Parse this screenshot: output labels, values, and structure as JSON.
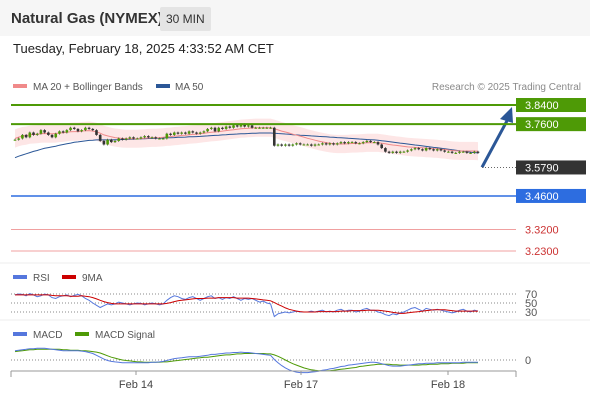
{
  "header": {
    "title": "Natural Gas (NYMEX)",
    "timeframe": "30 MIN",
    "datetime": "Tuesday, February 18, 2025 4:33:52 AM CET"
  },
  "colors": {
    "ma20": "#f08a8a",
    "ma50": "#2b5797",
    "resistance": "#4e9a06",
    "support": "#2d6de0",
    "lower_support": "#e06c6c",
    "current": "#333333",
    "rsi": "#5577dd",
    "rsi_ma": "#cc0000",
    "macd": "#5577dd",
    "macd_signal": "#4e9a06",
    "bollinger_fill": "#fbd5d5",
    "arrow": "#2b5797"
  },
  "chart_data": [
    {
      "type": "candlestick",
      "legend": [
        {
          "name": "MA 20 + Bollinger Bands",
          "color": "#f08a8a"
        },
        {
          "name": "MA 50",
          "color": "#2b5797"
        }
      ],
      "credit": "Research © 2025 Trading Central",
      "x_ticks": [
        "Feb 14",
        "Feb 17",
        "Feb 18"
      ],
      "ylim": [
        3.21,
        3.86
      ],
      "levels": [
        {
          "label": "3.8400",
          "value": 3.84,
          "style": "resistance"
        },
        {
          "label": "3.7600",
          "value": 3.76,
          "style": "resistance"
        },
        {
          "label": "3.5790",
          "value": 3.579,
          "style": "current"
        },
        {
          "label": "3.4600",
          "value": 3.46,
          "style": "support"
        },
        {
          "label": "3.3200",
          "value": 3.32,
          "style": "lower_support"
        },
        {
          "label": "3.2300",
          "value": 3.23,
          "style": "lower_support"
        }
      ],
      "close": [
        3.695,
        3.7,
        3.715,
        3.705,
        3.725,
        3.715,
        3.72,
        3.735,
        3.725,
        3.715,
        3.705,
        3.72,
        3.73,
        3.725,
        3.735,
        3.745,
        3.74,
        3.73,
        3.735,
        3.745,
        3.74,
        3.735,
        3.715,
        3.69,
        3.675,
        3.695,
        3.685,
        3.69,
        3.7,
        3.695,
        3.7,
        3.705,
        3.7,
        3.7,
        3.705,
        3.71,
        3.705,
        3.705,
        3.7,
        3.7,
        3.7,
        3.72,
        3.715,
        3.725,
        3.72,
        3.725,
        3.72,
        3.73,
        3.725,
        3.72,
        3.725,
        3.73,
        3.74,
        3.745,
        3.73,
        3.745,
        3.74,
        3.75,
        3.745,
        3.755,
        3.75,
        3.76,
        3.75,
        3.755,
        3.745,
        3.745,
        3.745,
        3.745,
        3.745,
        3.745,
        3.67,
        3.675,
        3.67,
        3.675,
        3.67,
        3.675,
        3.68,
        3.675,
        3.675,
        3.675,
        3.67,
        3.675,
        3.675,
        3.68,
        3.675,
        3.68,
        3.675,
        3.68,
        3.685,
        3.68,
        3.685,
        3.685,
        3.68,
        3.68,
        3.685,
        3.69,
        3.685,
        3.685,
        3.675,
        3.66,
        3.645,
        3.64,
        3.645,
        3.64,
        3.645,
        3.645,
        3.65,
        3.655,
        3.66,
        3.655,
        3.65,
        3.66,
        3.655,
        3.65,
        3.655,
        3.65,
        3.645,
        3.645,
        3.64,
        3.64,
        3.645,
        3.645,
        3.64,
        3.64,
        3.645,
        3.64
      ],
      "ma20": [
        3.7,
        3.706,
        3.71,
        3.712,
        3.716,
        3.717,
        3.718,
        3.72,
        3.721,
        3.72,
        3.72,
        3.721,
        3.723,
        3.724,
        3.726,
        3.728,
        3.729,
        3.729,
        3.731,
        3.732,
        3.733,
        3.731,
        3.728,
        3.722,
        3.715,
        3.711,
        3.707,
        3.704,
        3.702,
        3.7,
        3.699,
        3.699,
        3.699,
        3.699,
        3.7,
        3.701,
        3.702,
        3.703,
        3.703,
        3.704,
        3.705,
        3.707,
        3.708,
        3.71,
        3.711,
        3.713,
        3.714,
        3.716,
        3.717,
        3.718,
        3.72,
        3.722,
        3.724,
        3.726,
        3.727,
        3.729,
        3.731,
        3.733,
        3.735,
        3.737,
        3.739,
        3.741,
        3.742,
        3.743,
        3.744,
        3.745,
        3.745,
        3.745,
        3.745,
        3.745,
        3.741,
        3.736,
        3.731,
        3.727,
        3.723,
        3.718,
        3.714,
        3.71,
        3.706,
        3.701,
        3.697,
        3.693,
        3.689,
        3.686,
        3.683,
        3.68,
        3.678,
        3.677,
        3.677,
        3.677,
        3.678,
        3.679,
        3.679,
        3.68,
        3.681,
        3.682,
        3.682,
        3.682,
        3.682,
        3.68,
        3.678,
        3.675,
        3.673,
        3.671,
        3.669,
        3.667,
        3.665,
        3.664,
        3.663,
        3.662,
        3.661,
        3.66,
        3.659,
        3.658,
        3.657,
        3.655,
        3.654,
        3.652,
        3.65,
        3.649,
        3.648,
        3.648,
        3.648,
        3.648,
        3.648,
        3.647
      ],
      "ma50": [
        3.62,
        3.626,
        3.631,
        3.636,
        3.641,
        3.646,
        3.65,
        3.655,
        3.659,
        3.662,
        3.665,
        3.668,
        3.672,
        3.675,
        3.678,
        3.681,
        3.684,
        3.686,
        3.688,
        3.69,
        3.692,
        3.693,
        3.694,
        3.694,
        3.694,
        3.694,
        3.694,
        3.695,
        3.695,
        3.696,
        3.696,
        3.697,
        3.697,
        3.698,
        3.699,
        3.699,
        3.7,
        3.7,
        3.701,
        3.701,
        3.702,
        3.703,
        3.703,
        3.704,
        3.705,
        3.705,
        3.706,
        3.707,
        3.707,
        3.708,
        3.709,
        3.71,
        3.711,
        3.712,
        3.713,
        3.714,
        3.715,
        3.716,
        3.717,
        3.718,
        3.719,
        3.72,
        3.72,
        3.721,
        3.722,
        3.722,
        3.723,
        3.723,
        3.723,
        3.723,
        3.722,
        3.721,
        3.72,
        3.719,
        3.718,
        3.716,
        3.715,
        3.714,
        3.713,
        3.712,
        3.711,
        3.71,
        3.709,
        3.708,
        3.707,
        3.706,
        3.705,
        3.704,
        3.703,
        3.702,
        3.701,
        3.7,
        3.699,
        3.698,
        3.697,
        3.696,
        3.695,
        3.694,
        3.693,
        3.691,
        3.689,
        3.687,
        3.685,
        3.683,
        3.681,
        3.679,
        3.677,
        3.675,
        3.673,
        3.671,
        3.669,
        3.667,
        3.665,
        3.663,
        3.661,
        3.659,
        3.657,
        3.655,
        3.653,
        3.651,
        3.649,
        3.647,
        3.645,
        3.643,
        3.641,
        3.64
      ],
      "projection": {
        "from": 3.58,
        "to": 3.84
      }
    },
    {
      "type": "line",
      "legend": [
        {
          "name": "RSI",
          "color": "#5577dd"
        },
        {
          "name": "9MA",
          "color": "#cc0000"
        }
      ],
      "levels": [
        "70",
        "50",
        "30"
      ],
      "ylim": [
        0,
        100
      ],
      "rsi": [
        68,
        70,
        69,
        66,
        71,
        68,
        64,
        66,
        70,
        68,
        62,
        60,
        64,
        66,
        68,
        64,
        67,
        69,
        66,
        60,
        56,
        50,
        45,
        40,
        44,
        48,
        46,
        48,
        52,
        50,
        48,
        46,
        48,
        50,
        49,
        46,
        48,
        50,
        48,
        46,
        48,
        56,
        62,
        66,
        64,
        60,
        58,
        62,
        64,
        60,
        56,
        60,
        64,
        66,
        60,
        62,
        58,
        62,
        60,
        64,
        60,
        56,
        60,
        58,
        60,
        56,
        52,
        54,
        50,
        48,
        20,
        26,
        28,
        30,
        28,
        30,
        32,
        30,
        30,
        30,
        32,
        30,
        32,
        34,
        30,
        32,
        30,
        34,
        36,
        32,
        34,
        34,
        30,
        32,
        36,
        38,
        34,
        34,
        30,
        28,
        24,
        22,
        26,
        24,
        28,
        30,
        34,
        38,
        40,
        36,
        32,
        38,
        36,
        34,
        36,
        34,
        32,
        30,
        28,
        30,
        34,
        36,
        32,
        30,
        34,
        32
      ],
      "rsi_ma": [
        68,
        68,
        68,
        68,
        68,
        68,
        68,
        68,
        68,
        68,
        67,
        66,
        66,
        66,
        66,
        65,
        65,
        65,
        66,
        65,
        64,
        62,
        59,
        56,
        53,
        51,
        49,
        48,
        48,
        48,
        48,
        48,
        48,
        48,
        48,
        48,
        48,
        48,
        48,
        48,
        48,
        49,
        51,
        53,
        55,
        56,
        57,
        58,
        59,
        60,
        60,
        60,
        61,
        61,
        61,
        62,
        62,
        62,
        62,
        62,
        61,
        61,
        61,
        61,
        60,
        59,
        58,
        57,
        56,
        55,
        51,
        47,
        43,
        39,
        36,
        34,
        32,
        31,
        30,
        30,
        30,
        30,
        31,
        31,
        31,
        31,
        31,
        31,
        32,
        32,
        32,
        33,
        33,
        33,
        33,
        34,
        34,
        34,
        34,
        33,
        32,
        31,
        29,
        28,
        27,
        27,
        28,
        29,
        30,
        31,
        32,
        33,
        34,
        35,
        35,
        35,
        35,
        34,
        33,
        32,
        32,
        32,
        32,
        32,
        32,
        32
      ]
    },
    {
      "type": "line",
      "legend": [
        {
          "name": "MACD",
          "color": "#5577dd"
        },
        {
          "name": "MACD Signal",
          "color": "#4e9a06"
        }
      ],
      "levels": [
        "0"
      ],
      "ylim": [
        -0.06,
        0.04
      ],
      "macd": [
        0.02,
        0.021,
        0.022,
        0.023,
        0.024,
        0.024,
        0.025,
        0.025,
        0.025,
        0.024,
        0.023,
        0.022,
        0.021,
        0.02,
        0.02,
        0.02,
        0.02,
        0.02,
        0.019,
        0.018,
        0.016,
        0.014,
        0.01,
        0.006,
        0.002,
        -0.001,
        -0.003,
        -0.004,
        -0.005,
        -0.006,
        -0.006,
        -0.006,
        -0.006,
        -0.006,
        -0.006,
        -0.006,
        -0.006,
        -0.005,
        -0.005,
        -0.004,
        -0.003,
        -0.001,
        0.001,
        0.003,
        0.004,
        0.005,
        0.006,
        0.007,
        0.007,
        0.007,
        0.008,
        0.009,
        0.01,
        0.012,
        0.012,
        0.013,
        0.014,
        0.015,
        0.015,
        0.016,
        0.016,
        0.017,
        0.016,
        0.016,
        0.015,
        0.014,
        0.013,
        0.012,
        0.011,
        0.01,
        0.001,
        -0.006,
        -0.012,
        -0.017,
        -0.021,
        -0.024,
        -0.026,
        -0.027,
        -0.027,
        -0.027,
        -0.026,
        -0.025,
        -0.024,
        -0.022,
        -0.021,
        -0.019,
        -0.018,
        -0.016,
        -0.014,
        -0.013,
        -0.011,
        -0.01,
        -0.009,
        -0.008,
        -0.007,
        -0.006,
        -0.005,
        -0.005,
        -0.006,
        -0.008,
        -0.01,
        -0.012,
        -0.013,
        -0.013,
        -0.013,
        -0.012,
        -0.011,
        -0.01,
        -0.009,
        -0.008,
        -0.008,
        -0.007,
        -0.007,
        -0.007,
        -0.006,
        -0.006,
        -0.006,
        -0.006,
        -0.006,
        -0.006,
        -0.006,
        -0.005,
        -0.005,
        -0.005,
        -0.005,
        -0.005
      ],
      "signal": [
        0.018,
        0.019,
        0.02,
        0.021,
        0.022,
        0.022,
        0.023,
        0.023,
        0.023,
        0.023,
        0.023,
        0.023,
        0.023,
        0.022,
        0.022,
        0.021,
        0.021,
        0.021,
        0.02,
        0.02,
        0.019,
        0.018,
        0.017,
        0.015,
        0.012,
        0.009,
        0.006,
        0.004,
        0.002,
        0,
        -0.001,
        -0.002,
        -0.003,
        -0.004,
        -0.004,
        -0.005,
        -0.005,
        -0.005,
        -0.005,
        -0.005,
        -0.004,
        -0.004,
        -0.003,
        -0.002,
        -0.001,
        0,
        0.001,
        0.002,
        0.003,
        0.004,
        0.005,
        0.006,
        0.006,
        0.007,
        0.008,
        0.009,
        0.01,
        0.011,
        0.011,
        0.012,
        0.013,
        0.013,
        0.014,
        0.014,
        0.014,
        0.014,
        0.014,
        0.014,
        0.013,
        0.013,
        0.011,
        0.008,
        0.004,
        0,
        -0.004,
        -0.008,
        -0.011,
        -0.014,
        -0.017,
        -0.019,
        -0.021,
        -0.022,
        -0.023,
        -0.023,
        -0.023,
        -0.023,
        -0.022,
        -0.021,
        -0.02,
        -0.019,
        -0.018,
        -0.017,
        -0.016,
        -0.014,
        -0.013,
        -0.012,
        -0.011,
        -0.01,
        -0.009,
        -0.009,
        -0.009,
        -0.009,
        -0.01,
        -0.01,
        -0.011,
        -0.011,
        -0.011,
        -0.011,
        -0.011,
        -0.011,
        -0.01,
        -0.01,
        -0.009,
        -0.009,
        -0.009,
        -0.008,
        -0.008,
        -0.008,
        -0.007,
        -0.007,
        -0.007,
        -0.007,
        -0.006,
        -0.006,
        -0.006,
        -0.006
      ]
    }
  ]
}
